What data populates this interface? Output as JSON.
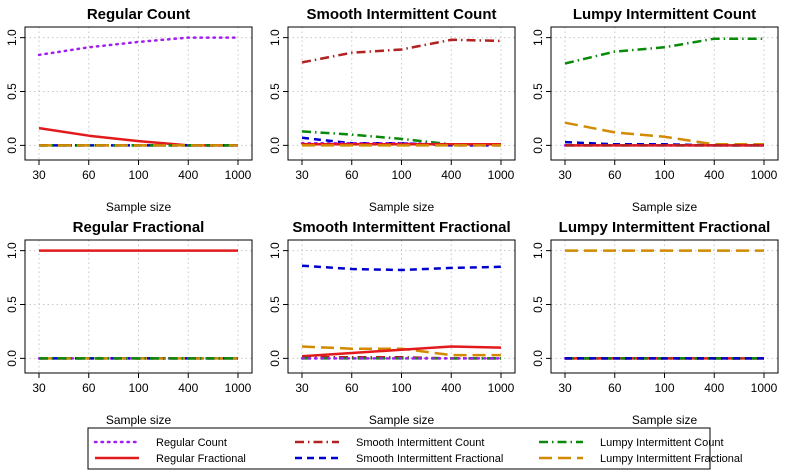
{
  "colors": {
    "regular_count": "#a020f0",
    "regular_fractional": "#e31a1c",
    "smooth_count": "#b22222",
    "smooth_fractional": "#0000cd",
    "lumpy_count": "#0a8a0a",
    "lumpy_fractional": "#d28a00",
    "grid": "#c8c8c8"
  },
  "legend": {
    "items": [
      {
        "key": "rc",
        "label": "Regular Count"
      },
      {
        "key": "rf",
        "label": "Regular Fractional"
      },
      {
        "key": "sc",
        "label": "Smooth Intermittent Count"
      },
      {
        "key": "sf",
        "label": "Smooth Intermittent Fractional"
      },
      {
        "key": "lc",
        "label": "Lumpy Intermittent Count"
      },
      {
        "key": "lf",
        "label": "Lumpy Intermittent Fractional"
      }
    ]
  },
  "chart_data": [
    {
      "type": "line",
      "title": "Regular Count",
      "xlabel": "Sample size",
      "ylabel": "",
      "x": [
        "30",
        "60",
        "100",
        "400",
        "1000"
      ],
      "yticks": [
        "0.0",
        "0.5",
        "1.0"
      ],
      "ylim": [
        0,
        1
      ],
      "grid": true,
      "series": [
        {
          "key": "rc",
          "values": [
            0.84,
            0.91,
            0.96,
            1.0,
            1.0
          ]
        },
        {
          "key": "rf",
          "values": [
            0.16,
            0.09,
            0.04,
            0.0,
            0.0
          ]
        },
        {
          "key": "sc",
          "values": [
            0.0,
            0.0,
            0.0,
            0.0,
            0.0
          ]
        },
        {
          "key": "sf",
          "values": [
            0.0,
            0.0,
            0.0,
            0.0,
            0.0
          ]
        },
        {
          "key": "lc",
          "values": [
            0.0,
            0.0,
            0.0,
            0.0,
            0.0
          ]
        },
        {
          "key": "lf",
          "values": [
            0.0,
            0.0,
            0.0,
            0.0,
            0.0
          ]
        }
      ]
    },
    {
      "type": "line",
      "title": "Smooth Intermittent Count",
      "xlabel": "Sample size",
      "ylabel": "",
      "x": [
        "30",
        "60",
        "100",
        "400",
        "1000"
      ],
      "yticks": [
        "0.0",
        "0.5",
        "1.0"
      ],
      "ylim": [
        0,
        1
      ],
      "grid": true,
      "series": [
        {
          "key": "sc",
          "values": [
            0.77,
            0.86,
            0.89,
            0.98,
            0.97
          ]
        },
        {
          "key": "lc",
          "values": [
            0.13,
            0.1,
            0.06,
            0.01,
            0.01
          ]
        },
        {
          "key": "sf",
          "values": [
            0.07,
            0.02,
            0.02,
            0.0,
            0.0
          ]
        },
        {
          "key": "rc",
          "values": [
            0.02,
            0.02,
            0.02,
            0.01,
            0.01
          ]
        },
        {
          "key": "rf",
          "values": [
            0.01,
            0.01,
            0.01,
            0.01,
            0.01
          ]
        },
        {
          "key": "lf",
          "values": [
            0.0,
            0.0,
            0.0,
            0.0,
            0.0
          ]
        }
      ]
    },
    {
      "type": "line",
      "title": "Lumpy Intermittent Count",
      "xlabel": "Sample size",
      "ylabel": "",
      "x": [
        "30",
        "60",
        "100",
        "400",
        "1000"
      ],
      "yticks": [
        "0.0",
        "0.5",
        "1.0"
      ],
      "ylim": [
        0,
        1
      ],
      "grid": true,
      "series": [
        {
          "key": "lc",
          "values": [
            0.76,
            0.87,
            0.91,
            0.99,
            0.99
          ]
        },
        {
          "key": "lf",
          "values": [
            0.21,
            0.12,
            0.08,
            0.01,
            0.01
          ]
        },
        {
          "key": "sf",
          "values": [
            0.03,
            0.01,
            0.01,
            0.0,
            0.0
          ]
        },
        {
          "key": "rc",
          "values": [
            0.0,
            0.0,
            0.0,
            0.0,
            0.0
          ]
        },
        {
          "key": "rf",
          "values": [
            0.0,
            0.0,
            0.0,
            0.0,
            0.0
          ]
        },
        {
          "key": "sc",
          "values": [
            0.0,
            0.0,
            0.0,
            0.0,
            0.0
          ]
        }
      ]
    },
    {
      "type": "line",
      "title": "Regular Fractional",
      "xlabel": "Sample size",
      "ylabel": "",
      "x": [
        "30",
        "60",
        "100",
        "400",
        "1000"
      ],
      "yticks": [
        "0.0",
        "0.5",
        "1.0"
      ],
      "ylim": [
        0,
        1
      ],
      "grid": true,
      "series": [
        {
          "key": "rf",
          "values": [
            1.0,
            1.0,
            1.0,
            1.0,
            1.0
          ]
        },
        {
          "key": "rc",
          "values": [
            0.0,
            0.0,
            0.0,
            0.0,
            0.0
          ]
        },
        {
          "key": "sc",
          "values": [
            0.0,
            0.0,
            0.0,
            0.0,
            0.0
          ]
        },
        {
          "key": "sf",
          "values": [
            0.0,
            0.0,
            0.0,
            0.0,
            0.0
          ]
        },
        {
          "key": "lf",
          "values": [
            0.0,
            0.0,
            0.0,
            0.0,
            0.0
          ]
        },
        {
          "key": "lc",
          "values": [
            0.0,
            0.0,
            0.0,
            0.0,
            0.0
          ]
        }
      ]
    },
    {
      "type": "line",
      "title": "Smooth Intermittent Fractional",
      "xlabel": "Sample size",
      "ylabel": "",
      "x": [
        "30",
        "60",
        "100",
        "400",
        "1000"
      ],
      "yticks": [
        "0.0",
        "0.5",
        "1.0"
      ],
      "ylim": [
        0,
        1
      ],
      "grid": true,
      "series": [
        {
          "key": "sf",
          "values": [
            0.86,
            0.83,
            0.82,
            0.84,
            0.85
          ]
        },
        {
          "key": "lf",
          "values": [
            0.11,
            0.09,
            0.09,
            0.03,
            0.03
          ]
        },
        {
          "key": "rf",
          "values": [
            0.02,
            0.05,
            0.08,
            0.11,
            0.1
          ]
        },
        {
          "key": "sc",
          "values": [
            0.01,
            0.01,
            0.01,
            0.0,
            0.0
          ]
        },
        {
          "key": "lc",
          "values": [
            0.0,
            0.0,
            0.0,
            0.0,
            0.0
          ]
        },
        {
          "key": "rc",
          "values": [
            0.0,
            0.0,
            0.0,
            0.0,
            0.0
          ]
        }
      ]
    },
    {
      "type": "line",
      "title": "Lumpy Intermittent Fractional",
      "xlabel": "Sample size",
      "ylabel": "",
      "x": [
        "30",
        "60",
        "100",
        "400",
        "1000"
      ],
      "yticks": [
        "0.0",
        "0.5",
        "1.0"
      ],
      "ylim": [
        0,
        1
      ],
      "grid": true,
      "series": [
        {
          "key": "lf",
          "values": [
            1.0,
            1.0,
            1.0,
            1.0,
            1.0
          ]
        },
        {
          "key": "rc",
          "values": [
            0.0,
            0.0,
            0.0,
            0.0,
            0.0
          ]
        },
        {
          "key": "rf",
          "values": [
            0.0,
            0.0,
            0.0,
            0.0,
            0.0
          ]
        },
        {
          "key": "sc",
          "values": [
            0.0,
            0.0,
            0.0,
            0.0,
            0.0
          ]
        },
        {
          "key": "lc",
          "values": [
            0.0,
            0.0,
            0.0,
            0.0,
            0.0
          ]
        },
        {
          "key": "sf",
          "values": [
            0.0,
            0.0,
            0.0,
            0.0,
            0.0
          ]
        }
      ]
    }
  ]
}
